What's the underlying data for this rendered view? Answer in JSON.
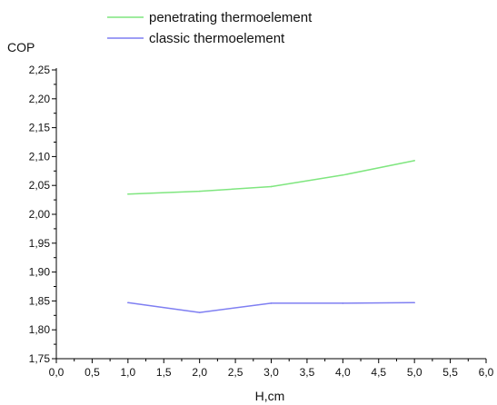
{
  "chart_data": {
    "type": "line",
    "ylabel": "COP",
    "xlabel": "H,cm",
    "xlim": [
      0,
      6
    ],
    "ylim": [
      1.75,
      2.25
    ],
    "x_ticks": [
      "0,0",
      "0,5",
      "1,0",
      "1,5",
      "2,0",
      "2,5",
      "3,0",
      "3,5",
      "4,0",
      "4,5",
      "5,0",
      "5,5",
      "6,0"
    ],
    "y_ticks": [
      "1,75",
      "1,80",
      "1,85",
      "1,90",
      "1,95",
      "2,00",
      "2,05",
      "2,10",
      "2,15",
      "2,20",
      "2,25"
    ],
    "grid": false,
    "legend_position": "top",
    "series": [
      {
        "name": "penetrating thermoelement",
        "color": "#7fe67f",
        "x": [
          1,
          2,
          3,
          4,
          5
        ],
        "y": [
          2.035,
          2.04,
          2.048,
          2.068,
          2.093
        ]
      },
      {
        "name": "classic thermoelement",
        "color": "#7f7ff2",
        "x": [
          1,
          2,
          3,
          4,
          5
        ],
        "y": [
          1.847,
          1.83,
          1.846,
          1.846,
          1.847
        ]
      }
    ]
  }
}
